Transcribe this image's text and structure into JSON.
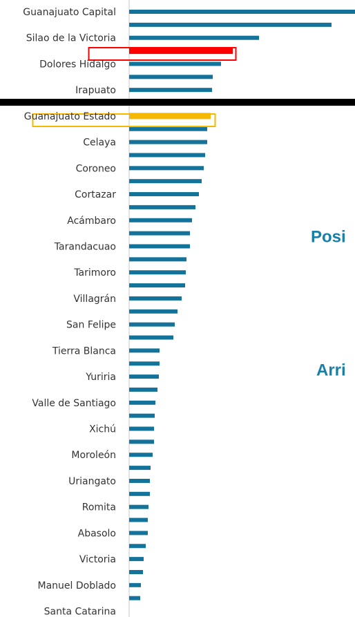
{
  "chart_data": {
    "type": "bar",
    "orientation": "horizontal",
    "categories": [
      "Guanajuato Capital",
      null,
      "Silao de la Victoria",
      null,
      "Dolores Hidalgo",
      null,
      "Irapuato",
      "Guanajuato Estado",
      null,
      "Celaya",
      null,
      "Coroneo",
      null,
      "Cortazar",
      null,
      "Acámbaro",
      null,
      "Tarandacuao",
      null,
      "Tarimoro",
      null,
      "Villagrán",
      null,
      "San Felipe",
      null,
      "Tierra Blanca",
      null,
      "Yuriria",
      null,
      "Valle de Santiago",
      null,
      "Xichú",
      null,
      "Moroleón",
      null,
      "Uriangato",
      null,
      "Romita",
      null,
      "Abasolo",
      null,
      "Victoria",
      null,
      "Manuel Doblado",
      null,
      "Santa Catarina"
    ],
    "values": [
      340,
      293,
      188,
      150,
      133,
      121,
      120,
      118,
      113,
      113,
      110,
      108,
      105,
      101,
      96,
      91,
      88,
      88,
      83,
      82,
      81,
      76,
      70,
      66,
      64,
      44,
      44,
      43,
      41,
      38,
      37,
      36,
      36,
      34,
      31,
      30,
      30,
      28,
      27,
      27,
      24,
      21,
      20,
      17,
      16,
      0
    ],
    "color": "#13739a",
    "highlight_colors": [
      null,
      null,
      null,
      "#ff0000",
      null,
      null,
      null,
      "#f5b800",
      null,
      null,
      null,
      null,
      null,
      null,
      null,
      null,
      null,
      null,
      null,
      null,
      null,
      null,
      null,
      null,
      null,
      null,
      null,
      null,
      null,
      null,
      null,
      null,
      null,
      null,
      null,
      null,
      null,
      null,
      null,
      null,
      null,
      null,
      null,
      null,
      null,
      null
    ],
    "xlim": [
      0,
      327
    ],
    "annotations": [
      "Posi",
      "Arri"
    ]
  }
}
